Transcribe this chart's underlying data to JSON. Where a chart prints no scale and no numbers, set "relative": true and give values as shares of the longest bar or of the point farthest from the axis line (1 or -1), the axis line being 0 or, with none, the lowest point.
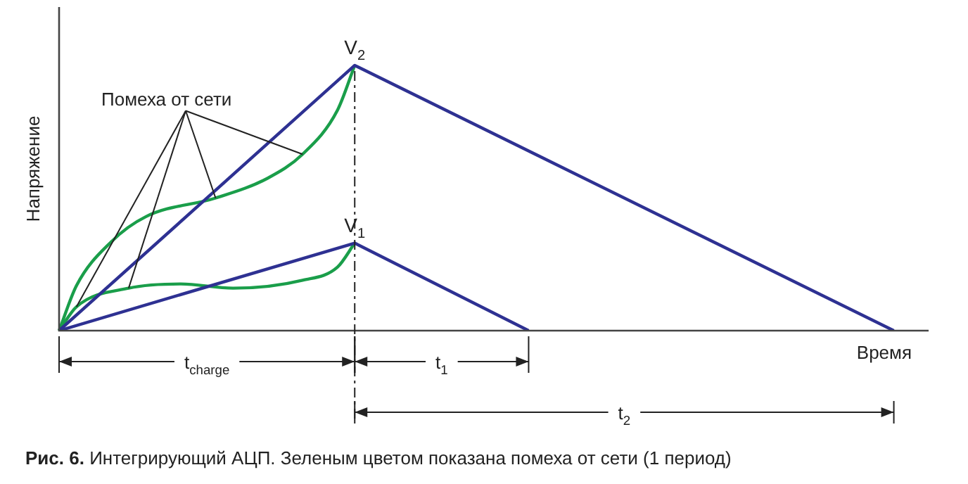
{
  "chart_data": {
    "type": "line",
    "relative": true,
    "xlabel": "Время",
    "ylabel": "Напряжение",
    "grid": false,
    "marker": "none",
    "line_style": "solid",
    "categories": [
      null,
      null,
      null,
      null,
      null,
      null,
      null,
      null,
      null,
      null,
      null,
      null,
      null,
      null,
      null,
      null,
      null,
      null,
      null,
      null,
      null,
      null,
      null,
      null,
      null,
      null,
      null,
      null,
      null,
      null,
      null,
      null,
      null,
      null,
      null,
      null,
      null,
      null,
      null,
      null,
      null,
      null,
      null,
      null,
      null,
      null,
      null,
      null,
      null,
      null,
      null
    ],
    "series": [
      {
        "color": "#2e3192",
        "values": [
          0,
          null,
          null,
          null,
          null,
          null,
          null,
          null,
          null,
          null,
          null,
          null,
          null,
          null,
          null,
          null,
          null,
          1,
          null,
          null,
          null,
          null,
          null,
          null,
          null,
          null,
          null,
          null,
          null,
          null,
          null,
          null,
          null,
          null,
          null,
          null,
          null,
          null,
          null,
          null,
          null,
          null,
          null,
          null,
          null,
          null,
          null,
          null,
          0,
          null,
          null
        ]
      },
      {
        "color": "#2e3192",
        "values": [
          0,
          null,
          null,
          null,
          null,
          null,
          null,
          null,
          null,
          null,
          null,
          null,
          null,
          null,
          null,
          null,
          null,
          0.33,
          null,
          null,
          null,
          null,
          null,
          null,
          null,
          null,
          null,
          0,
          null,
          null,
          null,
          null,
          null,
          null,
          null,
          null,
          null,
          null,
          null,
          null,
          null,
          null,
          null,
          null,
          null,
          null,
          null,
          null,
          null,
          null,
          null
        ]
      },
      {
        "color": "#1a9e4a",
        "values": [
          0,
          0.17,
          null,
          0.335,
          null,
          0.43,
          null,
          null,
          null,
          0.5,
          null,
          null,
          0.575,
          null,
          0.665,
          null,
          0.83,
          1,
          null,
          null,
          null,
          null,
          null,
          null,
          null,
          null,
          null,
          null,
          null,
          null,
          null,
          null,
          null,
          null,
          null,
          null,
          null,
          null,
          null,
          null,
          null,
          null,
          null,
          null,
          null,
          null,
          null,
          null,
          null,
          null,
          null
        ]
      },
      {
        "color": "#1a9e4a",
        "values": [
          0,
          0.09,
          null,
          null,
          0.16,
          null,
          null,
          0.176,
          null,
          null,
          0.16,
          null,
          null,
          null,
          0.19,
          null,
          0.239,
          0.33,
          null,
          null,
          null,
          null,
          null,
          null,
          null,
          null,
          null,
          null,
          null,
          null,
          null,
          null,
          null,
          null,
          null,
          null,
          null,
          null,
          null,
          null,
          null,
          null,
          null,
          null,
          null,
          null,
          null,
          null,
          null,
          null,
          null
        ]
      }
    ],
    "annotations": [
      "Помеха от сети",
      "V$_{2}$",
      "V$_{1}$",
      "t$_{charge}$",
      "t$_{1}$",
      "t$_{2}$",
      "Рис. 6. Интегрирующий АЦП. Зеленым цветом показана помеха от сети (1 период)"
    ]
  }
}
